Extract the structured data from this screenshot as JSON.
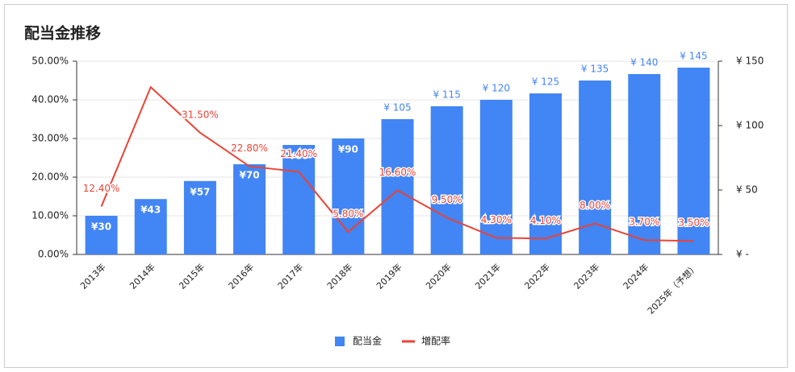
{
  "chart_data": {
    "type": "bar-line",
    "title": "配当金推移",
    "categories": [
      "2013年",
      "2014年",
      "2015年",
      "2016年",
      "2017年",
      "2018年",
      "2019年",
      "2020年",
      "2021年",
      "2022年",
      "2023年",
      "2024年",
      "2025年（予想）"
    ],
    "series": [
      {
        "name": "配当金",
        "type": "bar",
        "axis": "y2",
        "color": "#4285f4",
        "values": [
          30,
          43,
          57,
          70,
          85,
          90,
          105,
          115,
          120,
          125,
          135,
          140,
          145
        ],
        "value_labels": [
          "¥30",
          "¥43",
          "¥57",
          "¥70",
          "¥85",
          "¥90",
          "¥ 105",
          "¥ 115",
          "¥ 120",
          "¥ 125",
          "¥ 135",
          "¥ 140",
          "¥ 145"
        ]
      },
      {
        "name": "増配率",
        "type": "line",
        "color": "#ea4335",
        "values": [
          12.4,
          43.3,
          31.5,
          22.8,
          21.4,
          5.8,
          16.6,
          9.5,
          4.3,
          4.1,
          8.0,
          3.7,
          3.5
        ],
        "value_labels": [
          "12.40%",
          null,
          "31.50%",
          "22.80%",
          "21.40%",
          "5.80%",
          "16.60%",
          "9.50%",
          "4.30%",
          "4.10%",
          "8.00%",
          "3.70%",
          "3.50%"
        ]
      }
    ],
    "ylim": [
      0,
      50
    ],
    "yticks": [
      {
        "value": 0,
        "label": "0.00%"
      },
      {
        "value": 10,
        "label": "10.00%"
      },
      {
        "value": 20,
        "label": "20.00%"
      },
      {
        "value": 30,
        "label": "30.00%"
      },
      {
        "value": 40,
        "label": "40.00%"
      },
      {
        "value": 50,
        "label": "50.00%"
      }
    ],
    "y2lim": [
      0,
      150
    ],
    "y2ticks": [
      {
        "value": 0,
        "label": "¥ -"
      },
      {
        "value": 50,
        "label": "¥ 50"
      },
      {
        "value": 100,
        "label": "¥ 100"
      },
      {
        "value": 150,
        "label": "¥ 150"
      }
    ],
    "grid": true,
    "legend": "bottom"
  }
}
